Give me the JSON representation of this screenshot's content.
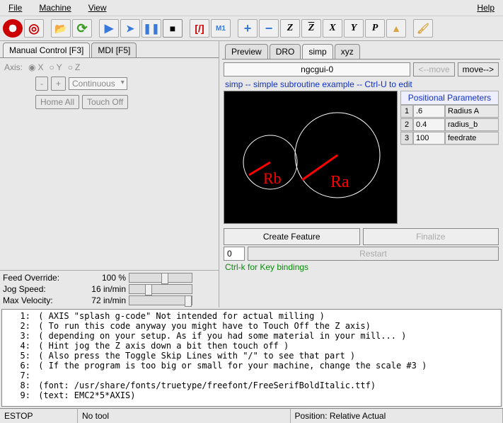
{
  "menu": {
    "file": "File",
    "machine": "Machine",
    "view": "View",
    "help": "Help"
  },
  "left_tabs": {
    "manual": "Manual Control [F3]",
    "mdi": "MDI [F5]"
  },
  "axis": {
    "label": "Axis:",
    "x": "X",
    "y": "Y",
    "z": "Z"
  },
  "jog": {
    "minus": "-",
    "plus": "+",
    "continuous": "Continuous"
  },
  "buttons": {
    "home_all": "Home All",
    "touch_off": "Touch Off"
  },
  "sliders": {
    "feed": {
      "label": "Feed Override:",
      "value": "100 %"
    },
    "jog": {
      "label": "Jog Speed:",
      "value": "16 in/min"
    },
    "vel": {
      "label": "Max Velocity:",
      "value": "72 in/min"
    }
  },
  "right_tabs": {
    "preview": "Preview",
    "dro": "DRO",
    "simp": "simp",
    "xyz": "xyz"
  },
  "preview": {
    "title": "ngcgui-0",
    "move_left": "<--move",
    "move_right": "move-->",
    "subtitle": "simp -- simple subroutine example -- Ctrl-U to edit",
    "params_title": "Positional Parameters",
    "params": [
      {
        "n": "1",
        "v": ".6",
        "l": "Radius A"
      },
      {
        "n": "2",
        "v": "0.4",
        "l": "radius_b"
      },
      {
        "n": "3",
        "v": "100",
        "l": "feedrate"
      }
    ],
    "labels": {
      "ra": "Ra",
      "rb": "Rb"
    },
    "create": "Create Feature",
    "finalize": "Finalize",
    "restart_n": "0",
    "restart": "Restart",
    "keybind": "Ctrl-k for Key bindings"
  },
  "code": [
    "( AXIS \"splash g-code\" Not intended for actual milling )",
    "( To run this code anyway you might have to Touch Off the Z axis)",
    "( depending on your setup. As if you had some material in your mill... )",
    "( Hint jog the Z axis down a bit then touch off )",
    "( Also press the Toggle Skip Lines with \"/\" to see that part )",
    "( If the program is too big or small for your machine, change the scale #3 )",
    "",
    "(font: /usr/share/fonts/truetype/freefont/FreeSerifBoldItalic.ttf)",
    "(text: EMC2*5*AXIS)"
  ],
  "status": {
    "estop": "ESTOP",
    "tool": "No tool",
    "pos": "Position: Relative Actual"
  },
  "colors": {
    "canvas_bg": "#000000",
    "circle_stroke": "#ffffff",
    "radius_line": "#ff0000",
    "label_fill": "#ff0000"
  }
}
